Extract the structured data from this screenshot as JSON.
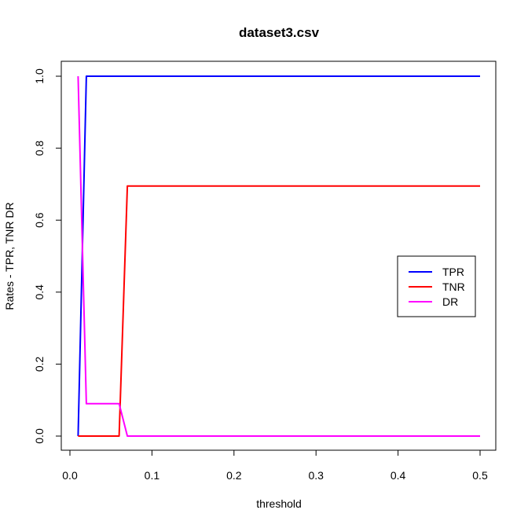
{
  "chart_data": {
    "type": "line",
    "title": "dataset3.csv",
    "xlabel": "threshold",
    "ylabel": "Rates - TPR, TNR DR",
    "xlim": [
      0.0,
      0.5
    ],
    "ylim": [
      0.0,
      1.0
    ],
    "xticks": [
      0.0,
      0.1,
      0.2,
      0.3,
      0.4,
      0.5
    ],
    "yticks": [
      0.0,
      0.2,
      0.4,
      0.6,
      0.8,
      1.0
    ],
    "xtick_labels": [
      "0.0",
      "0.1",
      "0.2",
      "0.3",
      "0.4",
      "0.5"
    ],
    "ytick_labels": [
      "0.0",
      "0.2",
      "0.4",
      "0.6",
      "0.8",
      "1.0"
    ],
    "grid": false,
    "legend_position": "right",
    "series": [
      {
        "name": "TPR",
        "color": "#0000ff",
        "x": [
          0.01,
          0.02,
          0.03,
          0.04,
          0.05,
          0.06,
          0.07,
          0.5
        ],
        "y": [
          0.0,
          1.0,
          1.0,
          1.0,
          1.0,
          1.0,
          1.0,
          1.0
        ]
      },
      {
        "name": "TNR",
        "color": "#ff0000",
        "x": [
          0.01,
          0.02,
          0.03,
          0.04,
          0.05,
          0.06,
          0.07,
          0.5
        ],
        "y": [
          0.0,
          0.0,
          0.0,
          0.0,
          0.0,
          0.0,
          0.695,
          0.695
        ]
      },
      {
        "name": "DR",
        "color": "#ff00ff",
        "x": [
          0.01,
          0.02,
          0.03,
          0.04,
          0.05,
          0.06,
          0.07,
          0.5
        ],
        "y": [
          1.0,
          0.09,
          0.09,
          0.09,
          0.09,
          0.09,
          0.0,
          0.0
        ]
      }
    ]
  }
}
